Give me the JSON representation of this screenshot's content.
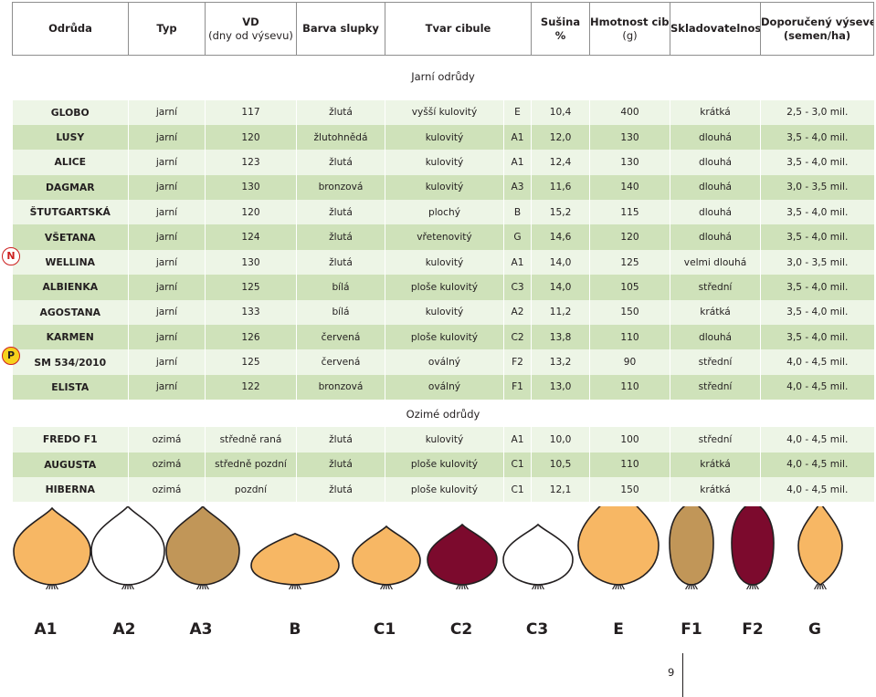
{
  "colors": {
    "row_light": "#edf5e6",
    "row_dark": "#cfe2ba",
    "onion_yellow": "#f7b764",
    "onion_bronze": "#c19658",
    "onion_red": "#7c0a2d",
    "onion_white": "#ffffff",
    "badge_red": "#cc1e1e",
    "badge_yellow": "#f6d21c"
  },
  "headers": {
    "odruda": "Odrůda",
    "typ": "Typ",
    "vd": "VD",
    "vd_sub": "(dny od výsevu)",
    "barva": "Barva slupky",
    "tvar": "Tvar cibule",
    "susina": "Sušina",
    "susina_sub": "%",
    "hmotnost": "Hmotnost cibule",
    "hmotnost_sub": "(g)",
    "sklad": "Skladovatelnost",
    "vysevek": "Doporučený výsevek",
    "vysevek_sub": "(semen/ha)"
  },
  "sections": {
    "spring": "Jarní odrůdy",
    "winter": "Ozimé odrůdy"
  },
  "spring_rows": [
    [
      "GLOBO",
      "jarní",
      "117",
      "žlutá",
      "vyšší kulovitý",
      "E",
      "10,4",
      "400",
      "krátká",
      "2,5 - 3,0 mil."
    ],
    [
      "LUSY",
      "jarní",
      "120",
      "žlutohnědá",
      "kulovitý",
      "A1",
      "12,0",
      "130",
      "dlouhá",
      "3,5 - 4,0 mil."
    ],
    [
      "ALICE",
      "jarní",
      "123",
      "žlutá",
      "kulovitý",
      "A1",
      "12,4",
      "130",
      "dlouhá",
      "3,5 - 4,0 mil."
    ],
    [
      "DAGMAR",
      "jarní",
      "130",
      "bronzová",
      "kulovitý",
      "A3",
      "11,6",
      "140",
      "dlouhá",
      "3,0 - 3,5 mil."
    ],
    [
      "ŠTUTGARTSKÁ",
      "jarní",
      "120",
      "žlutá",
      "plochý",
      "B",
      "15,2",
      "115",
      "dlouhá",
      "3,5 - 4,0 mil."
    ],
    [
      "VŠETANA",
      "jarní",
      "124",
      "žlutá",
      "vřetenovitý",
      "G",
      "14,6",
      "120",
      "dlouhá",
      "3,5 - 4,0 mil."
    ],
    [
      "WELLINA",
      "jarní",
      "130",
      "žlutá",
      "kulovitý",
      "A1",
      "14,0",
      "125",
      "velmi dlouhá",
      "3,0 - 3,5 mil."
    ],
    [
      "ALBIENKA",
      "jarní",
      "125",
      "bílá",
      "ploše kulovitý",
      "C3",
      "14,0",
      "105",
      "střední",
      "3,5 - 4,0 mil."
    ],
    [
      "AGOSTANA",
      "jarní",
      "133",
      "bílá",
      "kulovitý",
      "A2",
      "11,2",
      "150",
      "krátká",
      "3,5 - 4,0 mil."
    ],
    [
      "KARMEN",
      "jarní",
      "126",
      "červená",
      "ploše kulovitý",
      "C2",
      "13,8",
      "110",
      "dlouhá",
      "3,5 - 4,0 mil."
    ],
    [
      "SM 534/2010",
      "jarní",
      "125",
      "červená",
      "oválný",
      "F2",
      "13,2",
      "90",
      "střední",
      "4,0 - 4,5 mil."
    ],
    [
      "ELISTA",
      "jarní",
      "122",
      "bronzová",
      "oválný",
      "F1",
      "13,0",
      "110",
      "střední",
      "4,0 - 4,5 mil."
    ]
  ],
  "winter_rows": [
    [
      "FREDO F1",
      "ozimá",
      "středně raná",
      "žlutá",
      "kulovitý",
      "A1",
      "10,0",
      "100",
      "střední",
      "4,0 - 4,5 mil."
    ],
    [
      "AUGUSTA",
      "ozimá",
      "středně pozdní",
      "žlutá",
      "ploše kulovitý",
      "C1",
      "10,5",
      "110",
      "krátká",
      "4,0 - 4,5 mil."
    ],
    [
      "HIBERNA",
      "ozimá",
      "pozdní",
      "žlutá",
      "ploše kulovitý",
      "C1",
      "12,1",
      "150",
      "krátká",
      "4,0 - 4,5 mil."
    ]
  ],
  "badges": {
    "new": "N",
    "protected": "P"
  },
  "shapes": [
    {
      "code": "A1",
      "color": "onion_yellow"
    },
    {
      "code": "A2",
      "color": "onion_white"
    },
    {
      "code": "A3",
      "color": "onion_bronze"
    },
    {
      "code": "B",
      "color": "onion_yellow"
    },
    {
      "code": "C1",
      "color": "onion_yellow"
    },
    {
      "code": "C2",
      "color": "onion_red"
    },
    {
      "code": "C3",
      "color": "onion_white"
    },
    {
      "code": "E",
      "color": "onion_yellow"
    },
    {
      "code": "F1",
      "color": "onion_bronze"
    },
    {
      "code": "F2",
      "color": "onion_red"
    },
    {
      "code": "G",
      "color": "onion_yellow"
    }
  ],
  "page_number": "9"
}
